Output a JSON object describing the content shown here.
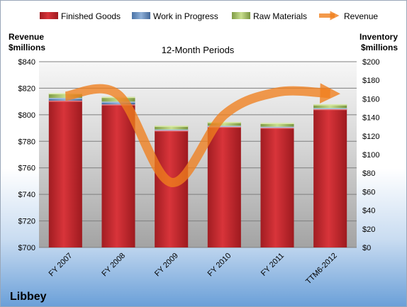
{
  "chart_data": {
    "type": "bar",
    "subtitle": "12-Month Periods",
    "company": "Libbey",
    "categories": [
      "FY 2007",
      "FY 2008",
      "FY 2009",
      "FY 2010",
      "FY 2011",
      "TTM6-2012"
    ],
    "left_axis": {
      "label_line1": "Revenue",
      "label_line2": "$millions",
      "min": 700,
      "max": 840,
      "step": 20,
      "ticks": [
        "$700",
        "$720",
        "$740",
        "$760",
        "$780",
        "$800",
        "$820",
        "$840"
      ]
    },
    "right_axis": {
      "label_line1": "Inventory",
      "label_line2": "$millions",
      "min": 0,
      "max": 200,
      "step": 20,
      "ticks": [
        "$0",
        "$20",
        "$40",
        "$60",
        "$80",
        "$100",
        "$120",
        "$140",
        "$160",
        "$180",
        "$200"
      ]
    },
    "series": [
      {
        "name": "Finished Goods",
        "axis": "right",
        "values": [
          158,
          154,
          126,
          130,
          129,
          149
        ]
      },
      {
        "name": "Work in Progress",
        "axis": "right",
        "values": [
          3,
          3,
          1,
          1,
          1,
          1
        ]
      },
      {
        "name": "Raw Materials",
        "axis": "right",
        "values": [
          5,
          5,
          4,
          4,
          4,
          4
        ]
      },
      {
        "name": "Revenue",
        "axis": "left",
        "type": "line",
        "values": [
          814,
          815,
          749,
          800,
          817,
          816
        ]
      }
    ],
    "colors": {
      "finished_goods": "#c0282c",
      "work_in_progress": "#4f81bd",
      "raw_materials": "#9bbb59",
      "revenue": "#f07f1e",
      "background_top": "#ffffff",
      "background_bottom": "#6a9fd8",
      "plot_band": "#a9a9a9"
    },
    "grid": true,
    "legend_position": "top"
  }
}
